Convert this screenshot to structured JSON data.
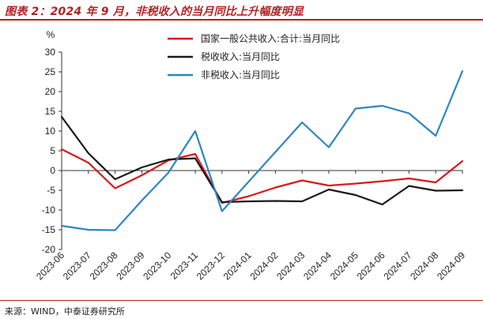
{
  "header": {
    "title": "图表 2：2024 年 9 月，非税收入的当月同比上升幅度明显"
  },
  "footer": {
    "source": "来源：WIND，中泰证券研究所"
  },
  "chart_data": {
    "type": "line",
    "ylabel": "%",
    "ylim": [
      -20,
      30
    ],
    "yticks": [
      -20,
      -15,
      -10,
      -5,
      0,
      5,
      10,
      15,
      20,
      25,
      30
    ],
    "grid": false,
    "legend_position": "top-center",
    "categories": [
      "2023-06",
      "2023-07",
      "2023-08",
      "2023-09",
      "2023-10",
      "2023-11",
      "2023-12",
      "2024-01",
      "2024-02",
      "2024-03",
      "2024-04",
      "2024-05",
      "2024-06",
      "2024-07",
      "2024-08",
      "2024-09"
    ],
    "series": [
      {
        "name": "国家一般公共收入:合计:当月同比",
        "color": "#d7191c",
        "x": [
          0,
          1,
          2,
          3,
          4,
          5,
          6,
          7,
          8,
          9,
          10,
          11,
          12,
          13,
          14,
          15
        ],
        "values": [
          5.4,
          2.0,
          -4.5,
          -1.2,
          2.6,
          4.2,
          -8.2,
          -6.5,
          -4.3,
          -2.5,
          -3.8,
          -3.3,
          -2.7,
          -2.0,
          -3.0,
          2.4
        ]
      },
      {
        "name": "税收收入:当月同比",
        "color": "#1a1a1a",
        "x": [
          0,
          1,
          2,
          3,
          4,
          5,
          6,
          7,
          8,
          9,
          10,
          11,
          12,
          13,
          14,
          15
        ],
        "values": [
          13.6,
          4.4,
          -2.2,
          0.8,
          2.8,
          3.1,
          -8.0,
          -7.8,
          -7.7,
          -7.8,
          -4.8,
          -6.2,
          -8.6,
          -3.9,
          -5.1,
          -5.0
        ]
      },
      {
        "name": "非税收入:当月同比",
        "color": "#2e86c1",
        "x": [
          0,
          1,
          2,
          3,
          4,
          5,
          6,
          9,
          10,
          11,
          12,
          13,
          14,
          15
        ],
        "values": [
          -14.0,
          -15.0,
          -15.1,
          -7.6,
          -0.5,
          10.0,
          -10.3,
          12.2,
          5.9,
          15.7,
          16.4,
          14.5,
          8.8,
          25.2
        ]
      }
    ]
  }
}
